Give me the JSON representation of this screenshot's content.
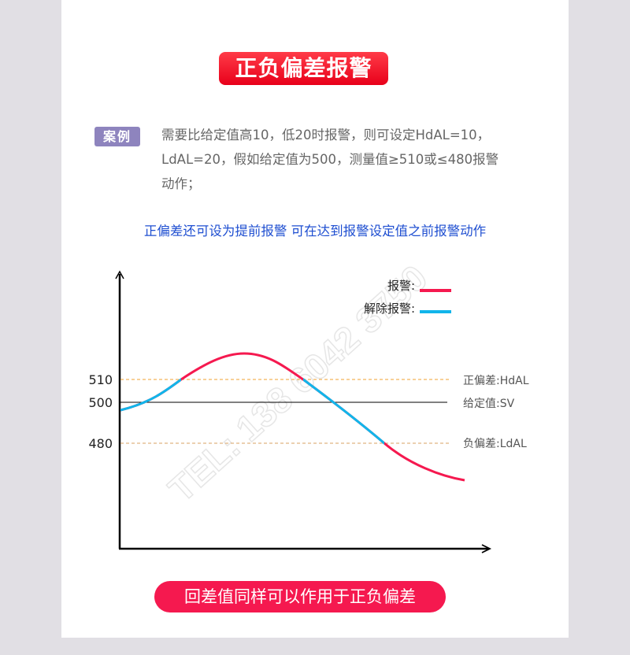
{
  "title": "正负偏差报警",
  "example": {
    "badge": "案例",
    "lines": [
      "需要比给定值高10，低20时报警，则可设定HdAL=10，",
      "LdAL=20，假如给定值为500，测量值≥510或≤480报警",
      "动作；"
    ]
  },
  "note": "正偏差还可设为提前报警  可在达到报警设定值之前报警动作",
  "diagram": {
    "y_ticks": [
      "510",
      "500",
      "480"
    ],
    "line_labels": {
      "high": "正偏差:HdAL",
      "setpoint": "给定值:SV",
      "low": "负偏差:LdAL"
    },
    "legend": [
      {
        "label": "报警:",
        "color": "#f5194f"
      },
      {
        "label": "解除报警:",
        "color": "#11b5ea"
      }
    ],
    "threshold_color": "#f0a030",
    "watermark": "TEL: 138 6042 3750"
  },
  "footer": "回差值同样可以作用于正负偏差"
}
